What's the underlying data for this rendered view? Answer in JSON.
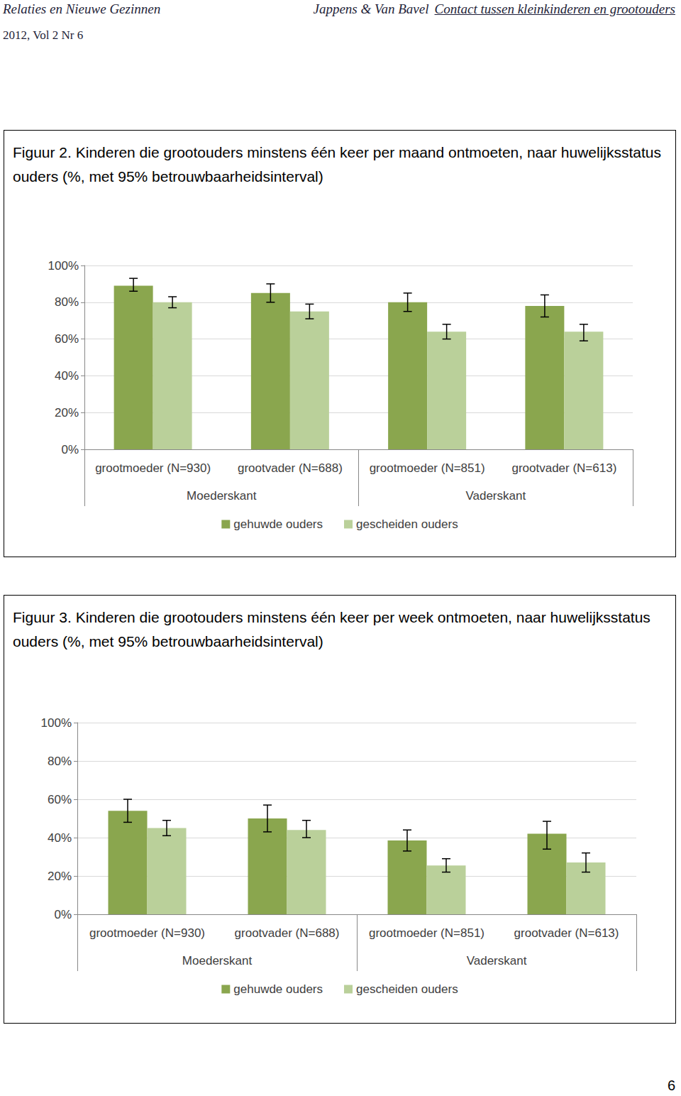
{
  "header": {
    "journal": "Relaties en Nieuwe Gezinnen",
    "authors": "Jappens & Van Bavel",
    "running_title": "Contact tussen kleinkinderen en grootouders",
    "issue": "2012, Vol 2 Nr 6"
  },
  "page_number": 6,
  "chart_data": [
    {
      "type": "bar",
      "title": "Figuur 2. Kinderen die grootouders minstens één keer per maand ontmoeten, naar huwelijksstatus ouders (%, met 95% betrouwbaarheidsinterval)",
      "categories": [
        "grootmoeder (N=930)",
        "grootvader (N=688)",
        "grootmoeder (N=851)",
        "grootvader (N=613)"
      ],
      "groups": [
        "Moederskant",
        "Moederskant",
        "Vaderskant",
        "Vaderskant"
      ],
      "series": [
        {
          "name": "gehuwde ouders",
          "color": "#8aa64e",
          "values": [
            89,
            85,
            80,
            78
          ],
          "ci": [
            [
              86,
              93
            ],
            [
              80,
              90
            ],
            [
              75,
              85
            ],
            [
              72,
              84
            ]
          ]
        },
        {
          "name": "gescheiden ouders",
          "color": "#bad09a",
          "values": [
            80,
            75,
            64,
            64
          ],
          "ci": [
            [
              77,
              83
            ],
            [
              71,
              79
            ],
            [
              60,
              68
            ],
            [
              59,
              68
            ]
          ]
        }
      ],
      "ylim": [
        0,
        100
      ],
      "yticks": [
        {
          "value": 0,
          "label": "0%"
        },
        {
          "value": 20,
          "label": "20%"
        },
        {
          "value": 40,
          "label": "40%"
        },
        {
          "value": 60,
          "label": "60%"
        },
        {
          "value": 80,
          "label": "80%"
        },
        {
          "value": 100,
          "label": "100%"
        }
      ],
      "grid": true,
      "legend": "bottom"
    },
    {
      "type": "bar",
      "title": "Figuur 3. Kinderen die grootouders minstens één keer per week ontmoeten, naar huwelijksstatus ouders (%, met 95% betrouwbaarheidsinterval)",
      "categories": [
        "grootmoeder (N=930)",
        "grootvader (N=688)",
        "grootmoeder (N=851)",
        "grootvader (N=613)"
      ],
      "groups": [
        "Moederskant",
        "Moederskant",
        "Vaderskant",
        "Vaderskant"
      ],
      "series": [
        {
          "name": "gehuwde ouders",
          "color": "#8aa64e",
          "values": [
            54,
            50,
            38.5,
            42
          ],
          "ci": [
            [
              48,
              60
            ],
            [
              43,
              57
            ],
            [
              33,
              44
            ],
            [
              34,
              48.5
            ]
          ]
        },
        {
          "name": "gescheiden ouders",
          "color": "#bad09a",
          "values": [
            45,
            44,
            25.5,
            27
          ],
          "ci": [
            [
              41,
              49
            ],
            [
              40,
              49
            ],
            [
              22,
              29
            ],
            [
              22,
              32
            ]
          ]
        }
      ],
      "ylim": [
        0,
        100
      ],
      "yticks": [
        {
          "value": 0,
          "label": "0%"
        },
        {
          "value": 20,
          "label": "20%"
        },
        {
          "value": 40,
          "label": "40%"
        },
        {
          "value": 60,
          "label": "60%"
        },
        {
          "value": 80,
          "label": "80%"
        },
        {
          "value": 100,
          "label": "100%"
        }
      ],
      "grid": true,
      "legend": "bottom"
    }
  ]
}
